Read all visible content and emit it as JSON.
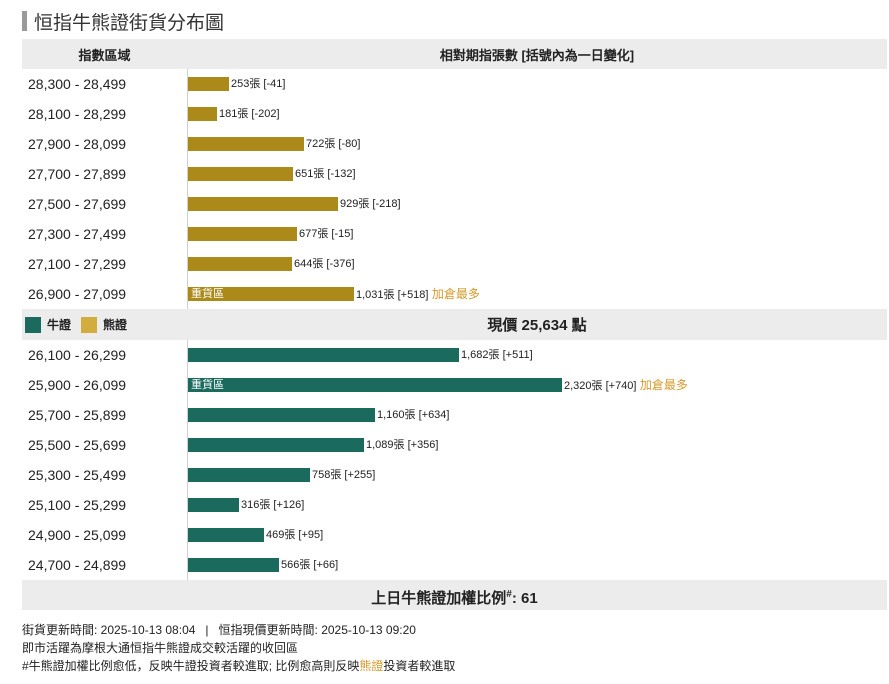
{
  "page_title": "恒指牛熊證街貨分布圖",
  "header": {
    "col_range": "指數區域",
    "col_value": "相對期指張數 [括號內為一日變化]"
  },
  "legend": {
    "bull": "牛證",
    "bear": "熊證"
  },
  "current_price": {
    "label": "現價",
    "value": "25,634",
    "unit": "點"
  },
  "footer": {
    "label": "上日牛熊證加權比例",
    "marker": "#",
    "value": ": 61"
  },
  "heavy_label": "重貨區",
  "max_add_label": "加倉最多",
  "notes": {
    "update_line": "街貨更新時間: 2025-10-13 08:04   |   恒指現價更新時間: 2025-10-13 09:20",
    "line2": "即市活躍為摩根大通恒指牛熊證成交較活躍的收回區",
    "line3_a": "#牛熊證加權比例愈低，反映",
    "line3_bull": "牛證",
    "line3_b": "投資者較進取; 比例愈高則反映",
    "line3_bear": "熊證",
    "line3_c": "投資者較進取"
  },
  "colors": {
    "bull": "#1b6a5e",
    "bear": "#ab8a1a",
    "note": "#d59a2b"
  },
  "chart_data": {
    "type": "bar",
    "orientation": "horizontal",
    "bear_rows": [
      {
        "range": "28,300 - 28,499",
        "value": 253,
        "label": "253張 [-41]",
        "heavy": false,
        "max_add": false
      },
      {
        "range": "28,100 - 28,299",
        "value": 181,
        "label": "181張 [-202]",
        "heavy": false,
        "max_add": false
      },
      {
        "range": "27,900 - 28,099",
        "value": 722,
        "label": "722張 [-80]",
        "heavy": false,
        "max_add": false
      },
      {
        "range": "27,700 - 27,899",
        "value": 651,
        "label": "651張 [-132]",
        "heavy": false,
        "max_add": false
      },
      {
        "range": "27,500 - 27,699",
        "value": 929,
        "label": "929張 [-218]",
        "heavy": false,
        "max_add": false
      },
      {
        "range": "27,300 - 27,499",
        "value": 677,
        "label": "677張 [-15]",
        "heavy": false,
        "max_add": false
      },
      {
        "range": "27,100 - 27,299",
        "value": 644,
        "label": "644張 [-376]",
        "heavy": false,
        "max_add": false
      },
      {
        "range": "26,900 - 27,099",
        "value": 1031,
        "label": "1,031張 [+518]",
        "heavy": true,
        "max_add": true
      }
    ],
    "bull_rows": [
      {
        "range": "26,100 - 26,299",
        "value": 1682,
        "label": "1,682張 [+511]",
        "heavy": false,
        "max_add": false
      },
      {
        "range": "25,900 - 26,099",
        "value": 2320,
        "label": "2,320張 [+740]",
        "heavy": true,
        "max_add": true
      },
      {
        "range": "25,700 - 25,899",
        "value": 1160,
        "label": "1,160張 [+634]",
        "heavy": false,
        "max_add": false
      },
      {
        "range": "25,500 - 25,699",
        "value": 1089,
        "label": "1,089張 [+356]",
        "heavy": false,
        "max_add": false
      },
      {
        "range": "25,300 - 25,499",
        "value": 758,
        "label": "758張 [+255]",
        "heavy": false,
        "max_add": false
      },
      {
        "range": "25,100 - 25,299",
        "value": 316,
        "label": "316張 [+126]",
        "heavy": false,
        "max_add": false
      },
      {
        "range": "24,900 - 25,099",
        "value": 469,
        "label": "469張 [+95]",
        "heavy": false,
        "max_add": false
      },
      {
        "range": "24,700 - 24,899",
        "value": 566,
        "label": "566張 [+66]",
        "heavy": false,
        "max_add": false
      }
    ]
  }
}
